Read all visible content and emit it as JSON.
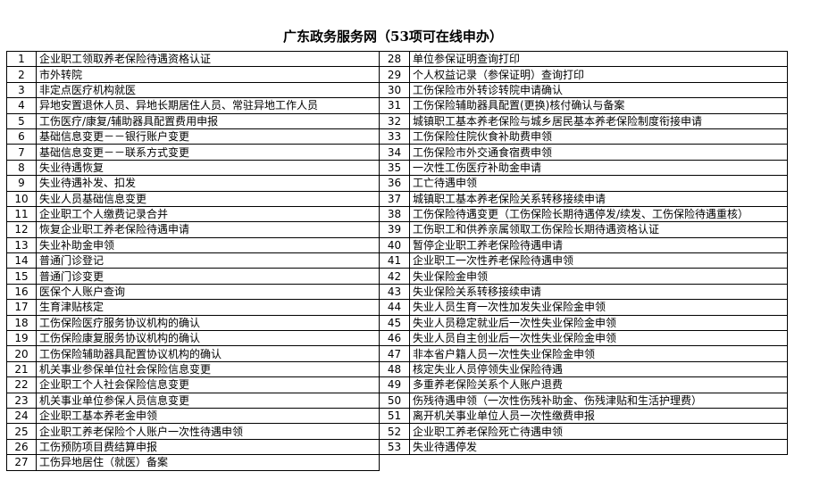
{
  "title": "广东政务服务网（53项可在线申办）",
  "items": [
    "企业职工领取养老保险待遇资格认证",
    "市外转院",
    "非定点医疗机构就医",
    "异地安置退休人员、异地长期居住人员、常驻异地工作人员",
    "工伤医疗/康复/辅助器具配置费用申报",
    "基础信息变更－－银行账户变更",
    "基础信息变更－－联系方式变更",
    "失业待遇恢复",
    "失业待遇补发、扣发",
    "失业人员基础信息变更",
    "企业职工个人缴费记录合并",
    "恢复企业职工养老保险待遇申请",
    "失业补助金申领",
    "普通门诊登记",
    "普通门诊变更",
    "医保个人账户查询",
    "生育津贴核定",
    "工伤保险医疗服务协议机构的确认",
    "工伤保险康复服务协议机构的确认",
    "工伤保险辅助器具配置协议机构的确认",
    "机关事业参保单位社会保险信息变更",
    "企业职工个人社会保险信息变更",
    "机关事业单位参保人员信息变更",
    "企业职工基本养老金申领",
    "企业职工养老保险个人账户一次性待遇申领",
    "工伤预防项目费结算申报",
    "工伤异地居住（就医）备案",
    "单位参保证明查询打印",
    "个人权益记录（参保证明）查询打印",
    "工伤保险市外转诊转院申请确认",
    "工伤保险辅助器具配置(更换)核付确认与备案",
    "城镇职工基本养老保险与城乡居民基本养老保险制度衔接申请",
    "工伤保险住院伙食补助费申领",
    "工伤保险市外交通食宿费申领",
    "一次性工伤医疗补助金申请",
    "工亡待遇申领",
    "城镇职工基本养老保险关系转移接续申请",
    "工伤保险待遇变更（工伤保险长期待遇停发/续发、工伤保险待遇重核）",
    "工伤职工和供养亲属领取工伤保险长期待遇资格认证",
    "暂停企业职工养老保险待遇申请",
    "企业职工一次性养老保险待遇申领",
    "失业保险金申领",
    "失业保险关系转移接续申请",
    "失业人员生育一次性加发失业保险金申领",
    "失业人员稳定就业后一次性失业保险金申领",
    "失业人员自主创业后一次性失业保险金申领",
    "非本省户籍人员一次性失业保险金申领",
    "核定失业人员停领失业保险待遇",
    "多重养老保险关系个人账户退费",
    "伤残待遇申领（一次性伤残补助金、伤残津贴和生活护理费）",
    "离开机关事业单位人员一次性缴费申报",
    "企业职工养老保险死亡待遇申领",
    "失业待遇停发"
  ]
}
